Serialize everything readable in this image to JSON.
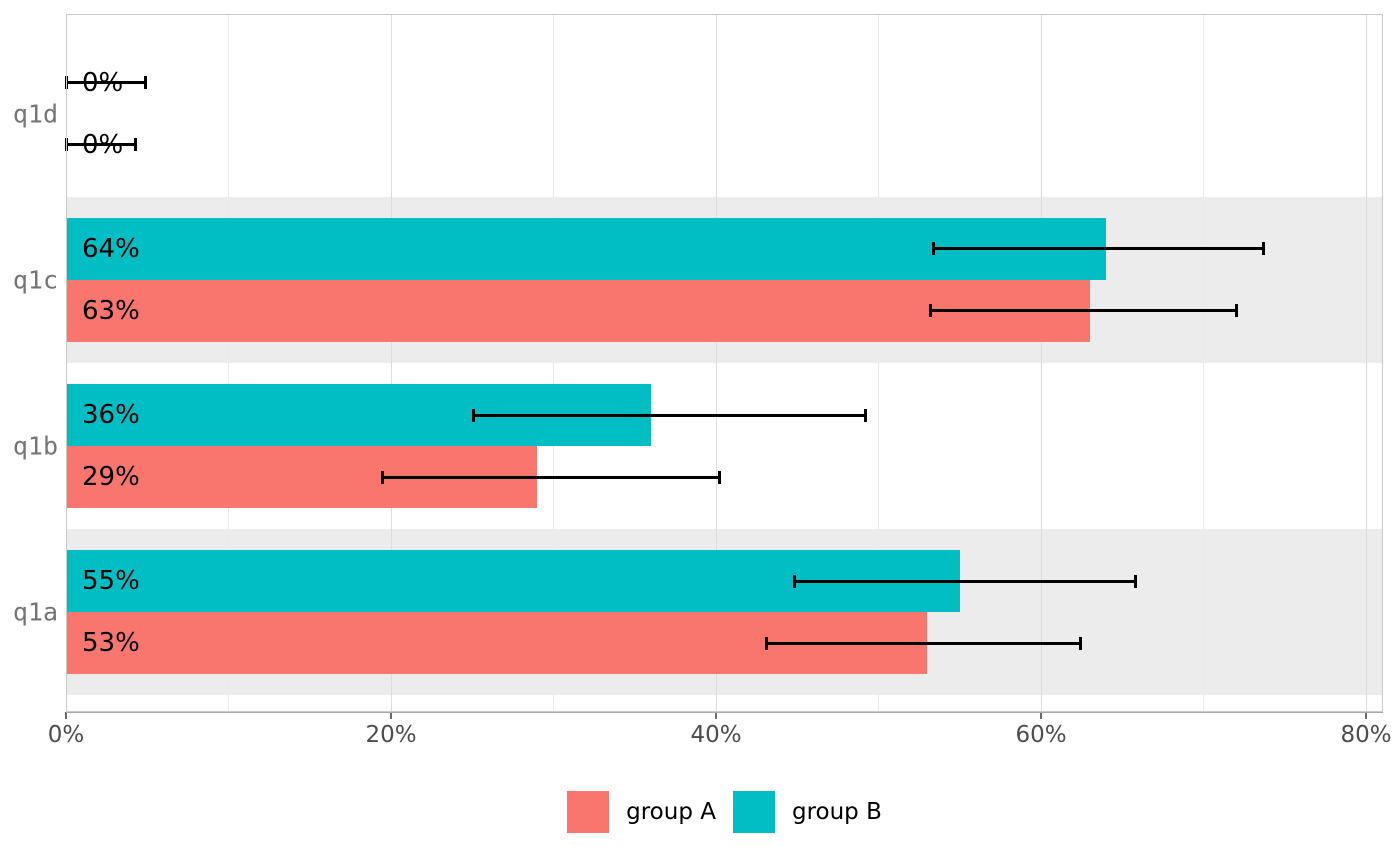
{
  "figure": {
    "background": "#ffffff",
    "title": ""
  },
  "chart_data": {
    "type": "bar",
    "orientation": "horizontal",
    "title": "",
    "xlabel": "",
    "ylabel": "",
    "xlim": [
      0,
      80
    ],
    "categories_top_to_bottom": [
      "q1d",
      "q1c",
      "q1b",
      "q1a"
    ],
    "striped_categories": [
      "q1c",
      "q1a"
    ],
    "stripe_color": "#ececec",
    "gridline_minor_color": "#eaeaea",
    "gridline_major_color": "#dcdcdc",
    "x_ticks": [
      {
        "value": 0,
        "label": "0%"
      },
      {
        "value": 20,
        "label": "20%"
      },
      {
        "value": 40,
        "label": "40%"
      },
      {
        "value": 60,
        "label": "60%"
      },
      {
        "value": 80,
        "label": "80%"
      }
    ],
    "x_minor_gridlines": [
      10,
      30,
      50,
      70
    ],
    "x_major_gridlines": [
      20,
      40,
      60,
      80
    ],
    "series": [
      {
        "name": "group B",
        "color": "#00BEC4",
        "position_within_category": "top",
        "values": [
          0,
          64,
          36,
          55
        ],
        "bar_labels": [
          "0%",
          "64%",
          "36%",
          "55%"
        ],
        "ci_low": [
          0,
          53.4,
          25.1,
          44.8
        ],
        "ci_high": [
          4.9,
          73.7,
          49.2,
          65.8
        ]
      },
      {
        "name": "group A",
        "color": "#F8766D",
        "position_within_category": "bottom",
        "values": [
          0,
          63,
          29,
          53
        ],
        "bar_labels": [
          "0%",
          "63%",
          "29%",
          "53%"
        ],
        "ci_low": [
          0,
          53.2,
          19.5,
          43.1
        ],
        "ci_high": [
          4.3,
          72.0,
          40.2,
          62.4
        ]
      }
    ],
    "error_bar_color": "#000000",
    "legend": {
      "position": "bottom-center",
      "entries": [
        {
          "label": "group A",
          "color": "#F8766D"
        },
        {
          "label": "group B",
          "color": "#00BEC4"
        }
      ]
    }
  }
}
